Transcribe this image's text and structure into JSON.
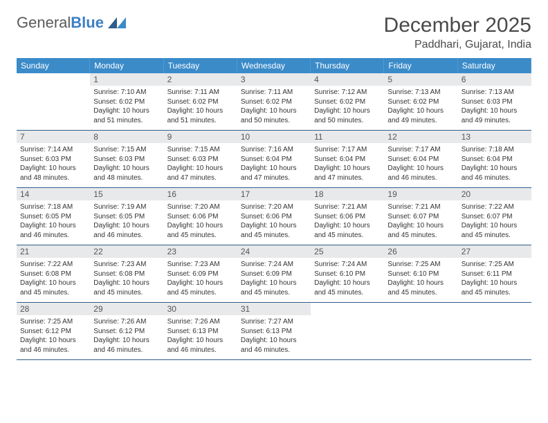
{
  "logo": {
    "text1": "General",
    "text2": "Blue"
  },
  "title": "December 2025",
  "location": "Paddhari, Gujarat, India",
  "colors": {
    "header_bg": "#3b8bc9",
    "header_text": "#ffffff",
    "daynum_bg": "#e8e9ea",
    "daynum_text": "#555555",
    "body_text": "#333333",
    "divider": "#2d5d8a",
    "title_text": "#4a4a4a",
    "logo_gray": "#5a5a5a",
    "logo_blue": "#3b7fc4"
  },
  "typography": {
    "title_fontsize": 30,
    "location_fontsize": 16,
    "dow_fontsize": 12,
    "daynum_fontsize": 12,
    "body_fontsize": 10
  },
  "days_of_week": [
    "Sunday",
    "Monday",
    "Tuesday",
    "Wednesday",
    "Thursday",
    "Friday",
    "Saturday"
  ],
  "weeks": [
    [
      null,
      {
        "n": "1",
        "sunrise": "7:10 AM",
        "sunset": "6:02 PM",
        "daylight": "10 hours and 51 minutes."
      },
      {
        "n": "2",
        "sunrise": "7:11 AM",
        "sunset": "6:02 PM",
        "daylight": "10 hours and 51 minutes."
      },
      {
        "n": "3",
        "sunrise": "7:11 AM",
        "sunset": "6:02 PM",
        "daylight": "10 hours and 50 minutes."
      },
      {
        "n": "4",
        "sunrise": "7:12 AM",
        "sunset": "6:02 PM",
        "daylight": "10 hours and 50 minutes."
      },
      {
        "n": "5",
        "sunrise": "7:13 AM",
        "sunset": "6:02 PM",
        "daylight": "10 hours and 49 minutes."
      },
      {
        "n": "6",
        "sunrise": "7:13 AM",
        "sunset": "6:03 PM",
        "daylight": "10 hours and 49 minutes."
      }
    ],
    [
      {
        "n": "7",
        "sunrise": "7:14 AM",
        "sunset": "6:03 PM",
        "daylight": "10 hours and 48 minutes."
      },
      {
        "n": "8",
        "sunrise": "7:15 AM",
        "sunset": "6:03 PM",
        "daylight": "10 hours and 48 minutes."
      },
      {
        "n": "9",
        "sunrise": "7:15 AM",
        "sunset": "6:03 PM",
        "daylight": "10 hours and 47 minutes."
      },
      {
        "n": "10",
        "sunrise": "7:16 AM",
        "sunset": "6:04 PM",
        "daylight": "10 hours and 47 minutes."
      },
      {
        "n": "11",
        "sunrise": "7:17 AM",
        "sunset": "6:04 PM",
        "daylight": "10 hours and 47 minutes."
      },
      {
        "n": "12",
        "sunrise": "7:17 AM",
        "sunset": "6:04 PM",
        "daylight": "10 hours and 46 minutes."
      },
      {
        "n": "13",
        "sunrise": "7:18 AM",
        "sunset": "6:04 PM",
        "daylight": "10 hours and 46 minutes."
      }
    ],
    [
      {
        "n": "14",
        "sunrise": "7:18 AM",
        "sunset": "6:05 PM",
        "daylight": "10 hours and 46 minutes."
      },
      {
        "n": "15",
        "sunrise": "7:19 AM",
        "sunset": "6:05 PM",
        "daylight": "10 hours and 46 minutes."
      },
      {
        "n": "16",
        "sunrise": "7:20 AM",
        "sunset": "6:06 PM",
        "daylight": "10 hours and 45 minutes."
      },
      {
        "n": "17",
        "sunrise": "7:20 AM",
        "sunset": "6:06 PM",
        "daylight": "10 hours and 45 minutes."
      },
      {
        "n": "18",
        "sunrise": "7:21 AM",
        "sunset": "6:06 PM",
        "daylight": "10 hours and 45 minutes."
      },
      {
        "n": "19",
        "sunrise": "7:21 AM",
        "sunset": "6:07 PM",
        "daylight": "10 hours and 45 minutes."
      },
      {
        "n": "20",
        "sunrise": "7:22 AM",
        "sunset": "6:07 PM",
        "daylight": "10 hours and 45 minutes."
      }
    ],
    [
      {
        "n": "21",
        "sunrise": "7:22 AM",
        "sunset": "6:08 PM",
        "daylight": "10 hours and 45 minutes."
      },
      {
        "n": "22",
        "sunrise": "7:23 AM",
        "sunset": "6:08 PM",
        "daylight": "10 hours and 45 minutes."
      },
      {
        "n": "23",
        "sunrise": "7:23 AM",
        "sunset": "6:09 PM",
        "daylight": "10 hours and 45 minutes."
      },
      {
        "n": "24",
        "sunrise": "7:24 AM",
        "sunset": "6:09 PM",
        "daylight": "10 hours and 45 minutes."
      },
      {
        "n": "25",
        "sunrise": "7:24 AM",
        "sunset": "6:10 PM",
        "daylight": "10 hours and 45 minutes."
      },
      {
        "n": "26",
        "sunrise": "7:25 AM",
        "sunset": "6:10 PM",
        "daylight": "10 hours and 45 minutes."
      },
      {
        "n": "27",
        "sunrise": "7:25 AM",
        "sunset": "6:11 PM",
        "daylight": "10 hours and 45 minutes."
      }
    ],
    [
      {
        "n": "28",
        "sunrise": "7:25 AM",
        "sunset": "6:12 PM",
        "daylight": "10 hours and 46 minutes."
      },
      {
        "n": "29",
        "sunrise": "7:26 AM",
        "sunset": "6:12 PM",
        "daylight": "10 hours and 46 minutes."
      },
      {
        "n": "30",
        "sunrise": "7:26 AM",
        "sunset": "6:13 PM",
        "daylight": "10 hours and 46 minutes."
      },
      {
        "n": "31",
        "sunrise": "7:27 AM",
        "sunset": "6:13 PM",
        "daylight": "10 hours and 46 minutes."
      },
      null,
      null,
      null
    ]
  ],
  "labels": {
    "sunrise": "Sunrise:",
    "sunset": "Sunset:",
    "daylight": "Daylight:"
  }
}
